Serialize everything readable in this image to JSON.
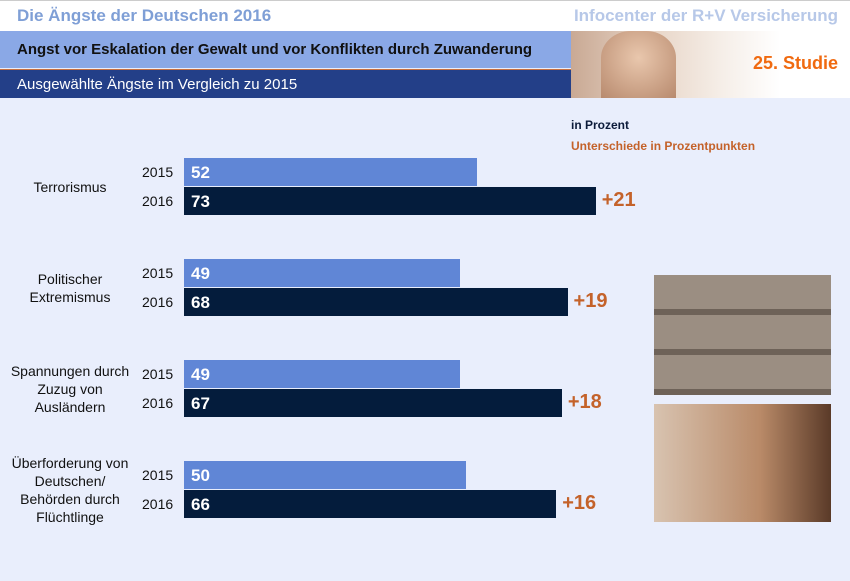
{
  "header": {
    "title": "Die Ängste der Deutschen 2016",
    "source": "Infocenter der R+V Versicherung",
    "subtitle": "Angst vor Eskalation der Gewalt und vor Konflikten durch Zuwanderung",
    "subtitle2": "Ausgewählte Ängste im Vergleich zu 2015",
    "study": "25. Studie"
  },
  "chart_data": {
    "type": "bar",
    "title": "Ausgewählte Ängste im Vergleich zu 2015",
    "unit_label": "in Prozent",
    "diff_label": "Unterschiede in Prozentpunkten",
    "categories": [
      "Terrorismus",
      "Politischer Extremismus",
      "Spannungen durch Zuzug von Ausländern",
      "Überforderung von Deutschen/ Behörden durch Flüchtlinge"
    ],
    "series": [
      {
        "name": "2015",
        "values": [
          52,
          49,
          49,
          50
        ],
        "color": "#6086d6"
      },
      {
        "name": "2016",
        "values": [
          73,
          68,
          67,
          66
        ],
        "color": "#041c3c"
      }
    ],
    "differences": [
      "+21",
      "+19",
      "+18",
      "+16"
    ],
    "xlim": [
      0,
      100
    ]
  }
}
